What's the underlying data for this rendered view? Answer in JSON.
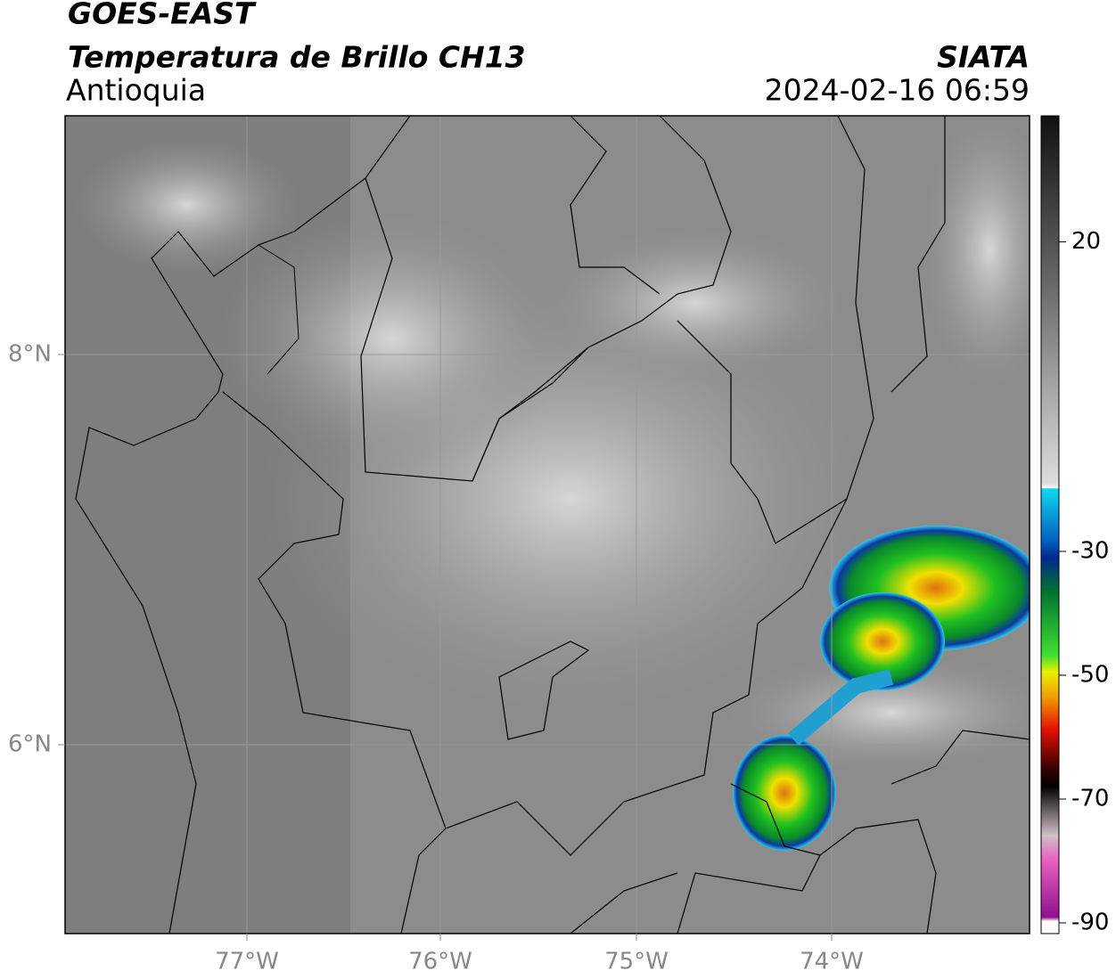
{
  "header": {
    "title": "GOES-EAST",
    "subtitle": "Temperatura de Brillo CH13",
    "region": "Antioquia",
    "source": "SIATA",
    "datetime": "2024-02-16 06:59"
  },
  "map": {
    "lon_ticks": [
      "77°W",
      "76°W",
      "75°W",
      "74°W"
    ],
    "lat_ticks": [
      "8°N",
      "6°N"
    ]
  },
  "colorbar": {
    "ticks": [
      20,
      -30,
      -50,
      -70,
      -90
    ]
  }
}
